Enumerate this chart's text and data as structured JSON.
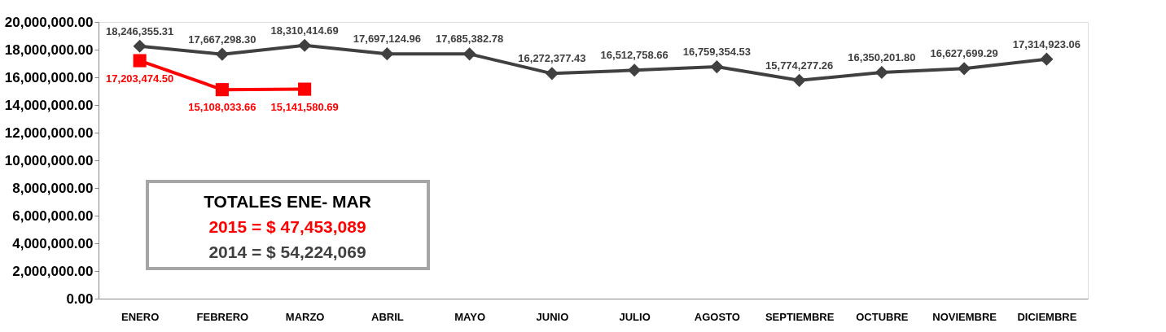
{
  "chart_data": {
    "type": "line",
    "categories": [
      "ENERO",
      "FEBRERO",
      "MARZO",
      "ABRIL",
      "MAYO",
      "JUNIO",
      "JULIO",
      "AGOSTO",
      "SEPTIEMBRE",
      "OCTUBRE",
      "NOVIEMBRE",
      "DICIEMBRE"
    ],
    "series": [
      {
        "color": "#404040",
        "marker": "diamond",
        "values": [
          18246355.31,
          17667298.3,
          18310414.69,
          17697124.96,
          17685382.78,
          16272377.43,
          16512758.66,
          16759354.53,
          15774277.26,
          16350201.8,
          16627699.29,
          17314923.06
        ],
        "value_labels": [
          "18,246,355.31",
          "17,667,298.30",
          "18,310,414.69",
          "17,697,124.96",
          "17,685,382.78",
          "16,272,377.43",
          "16,512,758.66",
          "16,759,354.53",
          "15,774,277.26",
          "16,350,201.80",
          "16,627,699.29",
          "17,314,923.06"
        ]
      },
      {
        "color": "#ff0000",
        "marker": "square",
        "values": [
          17203474.5,
          15108033.66,
          15141580.69,
          null,
          null,
          null,
          null,
          null,
          null,
          null,
          null,
          null
        ],
        "value_labels": [
          "17,203,474.50",
          "15,108,033.66",
          "15,141,580.69",
          null,
          null,
          null,
          null,
          null,
          null,
          null,
          null,
          null
        ]
      }
    ],
    "ylim": [
      0,
      20000000
    ],
    "yticks": [
      {
        "value": 0,
        "label": "0.00"
      },
      {
        "value": 2000000,
        "label": "2,000,000.00"
      },
      {
        "value": 4000000,
        "label": "4,000,000.00"
      },
      {
        "value": 6000000,
        "label": "6,000,000.00"
      },
      {
        "value": 8000000,
        "label": "8,000,000.00"
      },
      {
        "value": 10000000,
        "label": "10,000,000.00"
      },
      {
        "value": 12000000,
        "label": "12,000,000.00"
      },
      {
        "value": 14000000,
        "label": "14,000,000.00"
      },
      {
        "value": 16000000,
        "label": "16,000,000.00"
      },
      {
        "value": 18000000,
        "label": "18,000,000.00"
      },
      {
        "value": 20000000,
        "label": "20,000,000.00"
      }
    ],
    "line_style": "solid",
    "annotations": [
      "TOTALES ENE- MAR",
      "2015 = $ 47,453,089",
      "2014 = $ 54,224,069"
    ]
  }
}
